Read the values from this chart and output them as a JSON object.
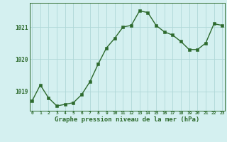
{
  "x": [
    0,
    1,
    2,
    3,
    4,
    5,
    6,
    7,
    8,
    9,
    10,
    11,
    12,
    13,
    14,
    15,
    16,
    17,
    18,
    19,
    20,
    21,
    22,
    23
  ],
  "y": [
    1018.7,
    1019.2,
    1018.8,
    1018.55,
    1018.6,
    1018.65,
    1018.9,
    1019.3,
    1019.85,
    1020.35,
    1020.65,
    1021.0,
    1021.05,
    1021.5,
    1021.45,
    1021.05,
    1020.85,
    1020.75,
    1020.55,
    1020.3,
    1020.3,
    1020.5,
    1021.1,
    1021.05
  ],
  "line_color": "#2d6a2d",
  "marker_color": "#2d6a2d",
  "bg_color": "#d4f0f0",
  "grid_color": "#b0d8d8",
  "xlabel": "Graphe pression niveau de la mer (hPa)",
  "xlabel_color": "#2d6a2d",
  "tick_color": "#2d6a2d",
  "ylim": [
    1018.4,
    1021.75
  ],
  "yticks": [
    1019,
    1020,
    1021
  ],
  "xticks": [
    0,
    1,
    2,
    3,
    4,
    5,
    6,
    7,
    8,
    9,
    10,
    11,
    12,
    13,
    14,
    15,
    16,
    17,
    18,
    19,
    20,
    21,
    22,
    23
  ]
}
